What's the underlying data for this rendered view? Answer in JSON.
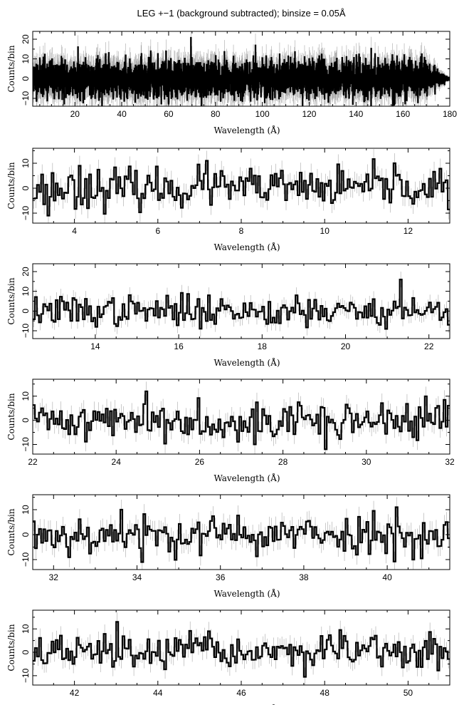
{
  "figure": {
    "title": "LEG +−1 (background subtracted); binsize = 0.05Å"
  },
  "colors": {
    "data": "#000000",
    "error_bars": "#a8a8a8",
    "background": "#ffffff"
  },
  "chart_data": [
    {
      "type": "line",
      "step": true,
      "xlabel": "Wavelength (Å)",
      "ylabel": "Counts/bin",
      "xlim": [
        2,
        180
      ],
      "ylim": [
        -14,
        24
      ],
      "xticks": [
        20,
        40,
        60,
        80,
        100,
        120,
        140,
        160,
        180
      ],
      "yticks": [
        -10,
        0,
        10,
        20
      ],
      "x_start": 2,
      "x_end": 180,
      "bin": 0.05,
      "series": [
        {
          "sigma": 4.5,
          "errbar": 6,
          "tail_start": 170,
          "seed": 11,
          "peaks": [
            [
              21.3,
              16
            ],
            [
              120,
              10
            ],
            [
              118,
              11
            ]
          ]
        }
      ]
    },
    {
      "type": "line",
      "step": true,
      "xlabel": "Wavelength (Å)",
      "ylabel": "Counts/bin",
      "xlim": [
        3,
        13
      ],
      "ylim": [
        -14,
        16
      ],
      "xticks": [
        4,
        6,
        8,
        10,
        12
      ],
      "yticks": [
        -10,
        0,
        10
      ],
      "x_start": 3,
      "x_end": 13,
      "bin": 0.05,
      "series": [
        {
          "sigma": 3.8,
          "errbar": 4,
          "seed": 23,
          "peaks": [
            [
              3.35,
              -11
            ],
            [
              7.15,
              11
            ],
            [
              11.65,
              10
            ],
            [
              4.1,
              9
            ]
          ]
        }
      ]
    },
    {
      "type": "line",
      "step": true,
      "xlabel": "Wavelength (Å)",
      "ylabel": "Counts/bin",
      "xlim": [
        12.5,
        22.5
      ],
      "ylim": [
        -14,
        24
      ],
      "xticks": [
        14,
        16,
        18,
        20,
        22
      ],
      "yticks": [
        -10,
        0,
        10,
        20
      ],
      "x_start": 12.5,
      "x_end": 22.5,
      "bin": 0.05,
      "series": [
        {
          "sigma": 3.8,
          "errbar": 4,
          "seed": 37,
          "peaks": [
            [
              21.3,
              16
            ],
            [
              18.8,
              8
            ],
            [
              16.7,
              8
            ]
          ]
        }
      ]
    },
    {
      "type": "line",
      "step": true,
      "xlabel": "Wavelength (Å)",
      "ylabel": "Counts/bin",
      "xlim": [
        22,
        32
      ],
      "ylim": [
        -14,
        17
      ],
      "xticks": [
        22,
        24,
        26,
        28,
        30,
        32
      ],
      "yticks": [
        -10,
        0,
        10
      ],
      "x_start": 22,
      "x_end": 32,
      "bin": 0.05,
      "series": [
        {
          "sigma": 3.8,
          "errbar": 4,
          "seed": 41,
          "peaks": [
            [
              24.7,
              12
            ],
            [
              27.3,
              -10
            ],
            [
              29.0,
              -12
            ]
          ]
        }
      ]
    },
    {
      "type": "line",
      "step": true,
      "xlabel": "Wavelength (Å)",
      "ylabel": "Counts/bin",
      "xlim": [
        31.5,
        41.5
      ],
      "ylim": [
        -14,
        16
      ],
      "xticks": [
        32,
        34,
        36,
        38,
        40
      ],
      "yticks": [
        -10,
        0,
        10
      ],
      "x_start": 31.5,
      "x_end": 41.5,
      "bin": 0.05,
      "series": [
        {
          "sigma": 3.8,
          "errbar": 4,
          "seed": 53,
          "peaks": [
            [
              33.6,
              10
            ],
            [
              34.1,
              -11
            ],
            [
              40.2,
              11
            ],
            [
              40.6,
              -10
            ]
          ]
        }
      ]
    },
    {
      "type": "line",
      "step": true,
      "xlabel": "Wavelength (Å)",
      "ylabel": "Counts/bin",
      "xlim": [
        41,
        51
      ],
      "ylim": [
        -14,
        18
      ],
      "xticks": [
        42,
        44,
        46,
        48,
        50
      ],
      "yticks": [
        -10,
        0,
        10
      ],
      "x_start": 41,
      "x_end": 51,
      "bin": 0.05,
      "series": [
        {
          "sigma": 3.6,
          "errbar": 4,
          "seed": 67,
          "peaks": [
            [
              43.0,
              13
            ],
            [
              45.2,
              9
            ],
            [
              47.9,
              7
            ]
          ]
        }
      ]
    }
  ]
}
